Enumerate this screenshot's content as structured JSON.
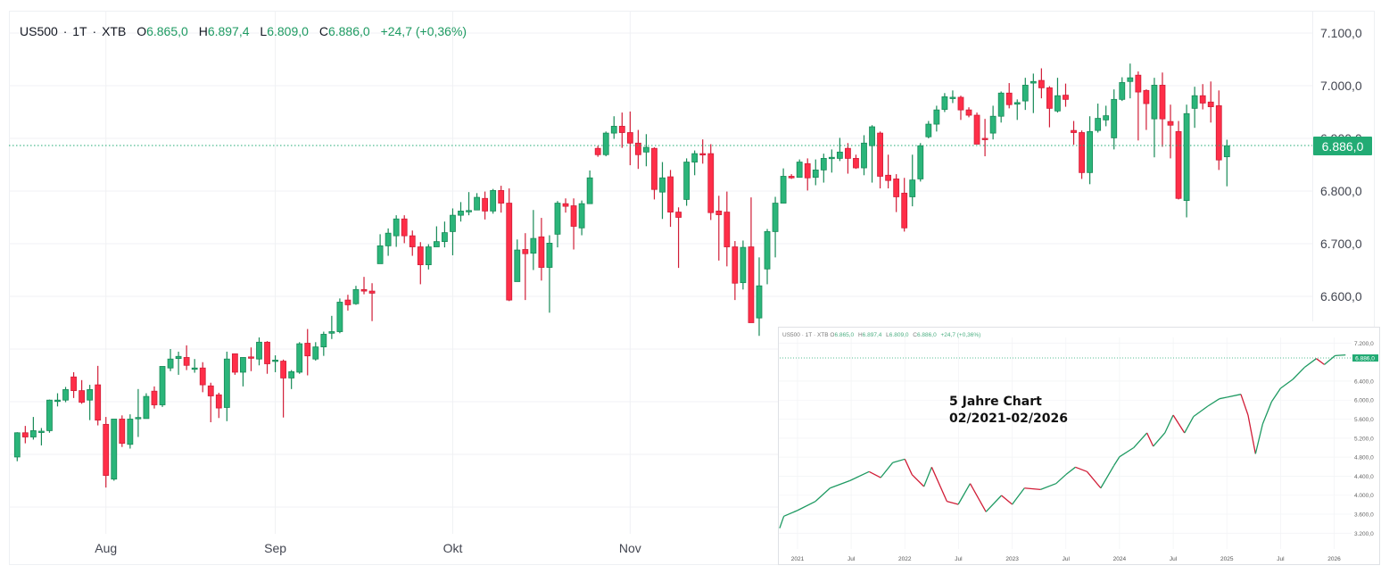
{
  "header": {
    "symbol": "US500",
    "sep1": "·",
    "interval": "1T",
    "sep2": "·",
    "exchange": "XTB",
    "open_label": "O",
    "open": "6.865,0",
    "high_label": "H",
    "high": "6.897,4",
    "low_label": "L",
    "low": "6.809,0",
    "close_label": "C",
    "close": "6.886,0",
    "change": "+24,7 (+0,36%)"
  },
  "colors": {
    "up": "#2bb57a",
    "up_border": "#178a57",
    "down": "#ff2e48",
    "down_border": "#d11d37",
    "last_price": "#22ab74",
    "grid": "#f0f1f4"
  },
  "inset": {
    "note_line1": "5 Jahre Chart",
    "note_line2": "02/2021-02/2026"
  },
  "chart_data": [
    {
      "type": "candlestick",
      "title": "",
      "y_ticks": [
        "7.100,0",
        "7.000,0",
        "6.900,0",
        "6.800,0",
        "6.700,0",
        "6.600,0"
      ],
      "y_tick_values": [
        7100,
        7000,
        6900,
        6800,
        6700,
        6600
      ],
      "last_price_label": "6.886,0",
      "last_price": 6886,
      "x_labels": [
        {
          "label": "Aug",
          "index": 11
        },
        {
          "label": "Sep",
          "index": 32
        },
        {
          "label": "Okt",
          "index": 54
        },
        {
          "label": "Nov",
          "index": 76
        }
      ],
      "grid": true,
      "ohlc": [
        [
          6295,
          6342,
          6287,
          6341
        ],
        [
          6341,
          6354,
          6321,
          6333
        ],
        [
          6333,
          6371,
          6328,
          6345
        ],
        [
          6342,
          6350,
          6317,
          6344
        ],
        [
          6345,
          6404,
          6341,
          6403
        ],
        [
          6401,
          6416,
          6391,
          6403
        ],
        [
          6403,
          6428,
          6399,
          6423
        ],
        [
          6447,
          6456,
          6407,
          6421
        ],
        [
          6421,
          6441,
          6396,
          6399
        ],
        [
          6403,
          6432,
          6365,
          6423
        ],
        [
          6432,
          6468,
          6355,
          6365
        ],
        [
          6357,
          6371,
          6237,
          6260
        ],
        [
          6253,
          6367,
          6250,
          6367
        ],
        [
          6367,
          6374,
          6314,
          6321
        ],
        [
          6319,
          6376,
          6311,
          6367
        ],
        [
          6368,
          6424,
          6333,
          6370
        ],
        [
          6368,
          6416,
          6368,
          6410
        ],
        [
          6420,
          6429,
          6387,
          6394
        ],
        [
          6394,
          6467,
          6390,
          6467
        ],
        [
          6464,
          6500,
          6458,
          6481
        ],
        [
          6482,
          6495,
          6451,
          6486
        ],
        [
          6484,
          6507,
          6460,
          6469
        ],
        [
          6463,
          6481,
          6455,
          6464
        ],
        [
          6464,
          6475,
          6418,
          6432
        ],
        [
          6430,
          6436,
          6361,
          6411
        ],
        [
          6413,
          6417,
          6369,
          6388
        ],
        [
          6389,
          6495,
          6363,
          6481
        ],
        [
          6491,
          6491,
          6451,
          6456
        ],
        [
          6456,
          6484,
          6429,
          6484
        ],
        [
          6485,
          6503,
          6458,
          6484
        ],
        [
          6481,
          6522,
          6469,
          6513
        ],
        [
          6513,
          6515,
          6453,
          6472
        ],
        [
          6477,
          6488,
          6456,
          6479
        ],
        [
          6477,
          6480,
          6370,
          6445
        ],
        [
          6445,
          6460,
          6424,
          6457
        ],
        [
          6456,
          6513,
          6453,
          6510
        ],
        [
          6511,
          6538,
          6450,
          6487
        ],
        [
          6481,
          6513,
          6478,
          6504
        ],
        [
          6504,
          6533,
          6487,
          6528
        ],
        [
          6530,
          6563,
          6519,
          6533
        ],
        [
          6533,
          6596,
          6530,
          6589
        ],
        [
          6593,
          6603,
          6573,
          6584
        ],
        [
          6586,
          6620,
          6584,
          6613
        ],
        [
          6613,
          6637,
          6604,
          6610
        ],
        [
          6610,
          6625,
          6553,
          6606
        ],
        [
          6662,
          6718,
          6662,
          6696
        ],
        [
          6696,
          6729,
          6677,
          6720
        ],
        [
          6715,
          6754,
          6694,
          6747
        ],
        [
          6747,
          6754,
          6701,
          6715
        ],
        [
          6715,
          6725,
          6677,
          6694
        ],
        [
          6694,
          6703,
          6623,
          6660
        ],
        [
          6660,
          6699,
          6651,
          6694
        ],
        [
          6694,
          6733,
          6694,
          6704
        ],
        [
          6704,
          6742,
          6693,
          6721
        ],
        [
          6723,
          6767,
          6678,
          6754
        ],
        [
          6754,
          6779,
          6742,
          6762
        ],
        [
          6762,
          6798,
          6754,
          6763
        ],
        [
          6764,
          6796,
          6764,
          6788
        ],
        [
          6786,
          6799,
          6746,
          6762
        ],
        [
          6762,
          6804,
          6757,
          6801
        ],
        [
          6801,
          6810,
          6759,
          6777
        ],
        [
          6777,
          6805,
          6591,
          6593
        ],
        [
          6628,
          6708,
          6628,
          6688
        ],
        [
          6689,
          6720,
          6593,
          6681
        ],
        [
          6682,
          6764,
          6650,
          6710
        ],
        [
          6713,
          6749,
          6630,
          6655
        ],
        [
          6655,
          6716,
          6569,
          6701
        ],
        [
          6718,
          6781,
          6693,
          6777
        ],
        [
          6776,
          6786,
          6759,
          6771
        ],
        [
          6772,
          6786,
          6689,
          6733
        ],
        [
          6730,
          6782,
          6716,
          6776
        ],
        [
          6776,
          6839,
          6776,
          6825
        ],
        [
          6881,
          6886,
          6865,
          6869
        ],
        [
          6869,
          6913,
          6866,
          6910
        ],
        [
          6910,
          6942,
          6899,
          6923
        ],
        [
          6923,
          6949,
          6882,
          6911
        ],
        [
          6911,
          6951,
          6849,
          6891
        ],
        [
          6891,
          6916,
          6842,
          6869
        ],
        [
          6874,
          6908,
          6847,
          6883
        ],
        [
          6881,
          6883,
          6784,
          6803
        ],
        [
          6798,
          6855,
          6747,
          6825
        ],
        [
          6827,
          6840,
          6732,
          6760
        ],
        [
          6760,
          6769,
          6654,
          6750
        ],
        [
          6784,
          6862,
          6772,
          6855
        ],
        [
          6855,
          6877,
          6830,
          6871
        ],
        [
          6871,
          6898,
          6852,
          6870
        ],
        [
          6871,
          6889,
          6745,
          6759
        ],
        [
          6762,
          6791,
          6668,
          6755
        ],
        [
          6760,
          6799,
          6657,
          6694
        ],
        [
          6694,
          6705,
          6593,
          6625
        ],
        [
          6626,
          6706,
          6613,
          6693
        ],
        [
          6694,
          6788,
          6550,
          6550
        ],
        [
          6559,
          6674,
          6525,
          6620
        ],
        [
          6652,
          6728,
          6623,
          6723
        ],
        [
          6723,
          6789,
          6674,
          6777
        ],
        [
          6777,
          6843,
          6777,
          6828
        ],
        [
          6828,
          6832,
          6823,
          6825
        ],
        [
          6826,
          6860,
          6826,
          6855
        ],
        [
          6852,
          6862,
          6801,
          6825
        ],
        [
          6826,
          6860,
          6811,
          6840
        ],
        [
          6840,
          6871,
          6816,
          6862
        ],
        [
          6863,
          6879,
          6835,
          6864
        ],
        [
          6862,
          6901,
          6857,
          6874
        ],
        [
          6881,
          6891,
          6833,
          6862
        ],
        [
          6862,
          6869,
          6842,
          6844
        ],
        [
          6844,
          6906,
          6830,
          6891
        ],
        [
          6886,
          6925,
          6816,
          6922
        ],
        [
          6910,
          6913,
          6805,
          6828
        ],
        [
          6830,
          6869,
          6805,
          6820
        ],
        [
          6823,
          6832,
          6760,
          6789
        ],
        [
          6796,
          6825,
          6723,
          6730
        ],
        [
          6789,
          6869,
          6771,
          6821
        ],
        [
          6823,
          6891,
          6818,
          6886
        ],
        [
          6903,
          6933,
          6900,
          6927
        ],
        [
          6927,
          6962,
          6913,
          6954
        ],
        [
          6955,
          6986,
          6950,
          6979
        ],
        [
          6976,
          6991,
          6967,
          6978
        ],
        [
          6978,
          6981,
          6935,
          6954
        ],
        [
          6954,
          6959,
          6940,
          6944
        ],
        [
          6944,
          6949,
          6889,
          6889
        ],
        [
          6900,
          6937,
          6866,
          6898
        ],
        [
          6910,
          6962,
          6898,
          6942
        ],
        [
          6942,
          6989,
          6930,
          6986
        ],
        [
          6986,
          7005,
          6957,
          6964
        ],
        [
          6965,
          6974,
          6935,
          6968
        ],
        [
          6971,
          7015,
          6954,
          7001
        ],
        [
          7005,
          7023,
          6948,
          7008
        ],
        [
          7010,
          7033,
          6976,
          6996
        ],
        [
          6996,
          6999,
          6921,
          6957
        ],
        [
          6952,
          7015,
          6949,
          6981
        ],
        [
          6982,
          7004,
          6960,
          6974
        ],
        [
          6915,
          6933,
          6888,
          6911
        ],
        [
          6911,
          6915,
          6823,
          6835
        ],
        [
          6835,
          6942,
          6813,
          6913
        ],
        [
          6915,
          6966,
          6911,
          6938
        ],
        [
          6935,
          6962,
          6923,
          6943
        ],
        [
          6901,
          6993,
          6879,
          6974
        ],
        [
          6974,
          7016,
          6971,
          7006
        ],
        [
          7008,
          7042,
          6976,
          7015
        ],
        [
          7020,
          7027,
          6896,
          6988
        ],
        [
          6991,
          6993,
          6916,
          6966
        ],
        [
          6937,
          7015,
          6864,
          7001
        ],
        [
          7001,
          7025,
          6884,
          6937
        ],
        [
          6932,
          6964,
          6862,
          6925
        ],
        [
          6913,
          6933,
          6784,
          6786
        ],
        [
          6782,
          6964,
          6750,
          6947
        ],
        [
          6957,
          6998,
          6920,
          6981
        ],
        [
          6981,
          7003,
          6955,
          6967
        ],
        [
          6969,
          7008,
          6930,
          6960
        ],
        [
          6962,
          6991,
          6840,
          6859
        ],
        [
          6865,
          6897.4,
          6809,
          6886
        ]
      ]
    },
    {
      "type": "line",
      "title": "",
      "y_ticks": [
        "7.200,0",
        "6.400,0",
        "6.000,0",
        "5.600,0",
        "5.200,0",
        "4.800,0",
        "4.400,0",
        "4.000,0",
        "3.600,0",
        "3.200,0"
      ],
      "y_tick_values": [
        7200,
        6400,
        6000,
        5600,
        5200,
        4800,
        4400,
        4000,
        3600,
        3200
      ],
      "last_price_label": "6.886,0",
      "last_price": 6886,
      "x_labels": [
        {
          "label": "2021",
          "date": "2021-01-01"
        },
        {
          "label": "Jul",
          "date": "2021-07-01"
        },
        {
          "label": "2022",
          "date": "2022-01-01"
        },
        {
          "label": "Jul",
          "date": "2022-07-01"
        },
        {
          "label": "2023",
          "date": "2023-01-01"
        },
        {
          "label": "Jul",
          "date": "2023-07-01"
        },
        {
          "label": "2024",
          "date": "2024-01-01"
        },
        {
          "label": "Jul",
          "date": "2024-07-01"
        },
        {
          "label": "2025",
          "date": "2025-01-01"
        },
        {
          "label": "Jul",
          "date": "2025-07-01"
        },
        {
          "label": "2026",
          "date": "2026-01-01"
        }
      ],
      "points": [
        [
          "2020-11-01",
          3306
        ],
        [
          "2020-11-15",
          3557
        ],
        [
          "2021-01-01",
          3680
        ],
        [
          "2021-03-01",
          3870
        ],
        [
          "2021-04-20",
          4150
        ],
        [
          "2021-06-27",
          4307
        ],
        [
          "2021-09-01",
          4496
        ],
        [
          "2021-10-10",
          4370
        ],
        [
          "2021-11-20",
          4684
        ],
        [
          "2022-01-01",
          4759
        ],
        [
          "2022-01-25",
          4433
        ],
        [
          "2022-03-05",
          4183
        ],
        [
          "2022-04-01",
          4590
        ],
        [
          "2022-05-22",
          3870
        ],
        [
          "2022-06-30",
          3807
        ],
        [
          "2022-08-10",
          4245
        ],
        [
          "2022-10-03",
          3650
        ],
        [
          "2022-11-25",
          3995
        ],
        [
          "2023-01-01",
          3807
        ],
        [
          "2023-02-12",
          4150
        ],
        [
          "2023-04-06",
          4120
        ],
        [
          "2023-05-28",
          4245
        ],
        [
          "2023-07-01",
          4433
        ],
        [
          "2023-08-03",
          4590
        ],
        [
          "2023-09-12",
          4496
        ],
        [
          "2023-10-28",
          4150
        ],
        [
          "2023-12-12",
          4621
        ],
        [
          "2024-01-01",
          4809
        ],
        [
          "2024-02-18",
          4997
        ],
        [
          "2024-04-03",
          5310
        ],
        [
          "2024-04-24",
          5028
        ],
        [
          "2024-06-03",
          5310
        ],
        [
          "2024-07-01",
          5685
        ],
        [
          "2024-08-09",
          5310
        ],
        [
          "2024-09-09",
          5654
        ],
        [
          "2024-10-27",
          5873
        ],
        [
          "2024-12-06",
          6029
        ],
        [
          "2025-01-01",
          6061
        ],
        [
          "2025-02-18",
          6123
        ],
        [
          "2025-03-12",
          5685
        ],
        [
          "2025-04-07",
          4871
        ],
        [
          "2025-05-01",
          5497
        ],
        [
          "2025-06-01",
          5967
        ],
        [
          "2025-07-01",
          6248
        ],
        [
          "2025-08-12",
          6436
        ],
        [
          "2025-09-21",
          6687
        ],
        [
          "2025-11-01",
          6874
        ],
        [
          "2025-11-28",
          6749
        ],
        [
          "2026-01-04",
          6937
        ],
        [
          "2026-02-09",
          6950
        ]
      ]
    }
  ]
}
